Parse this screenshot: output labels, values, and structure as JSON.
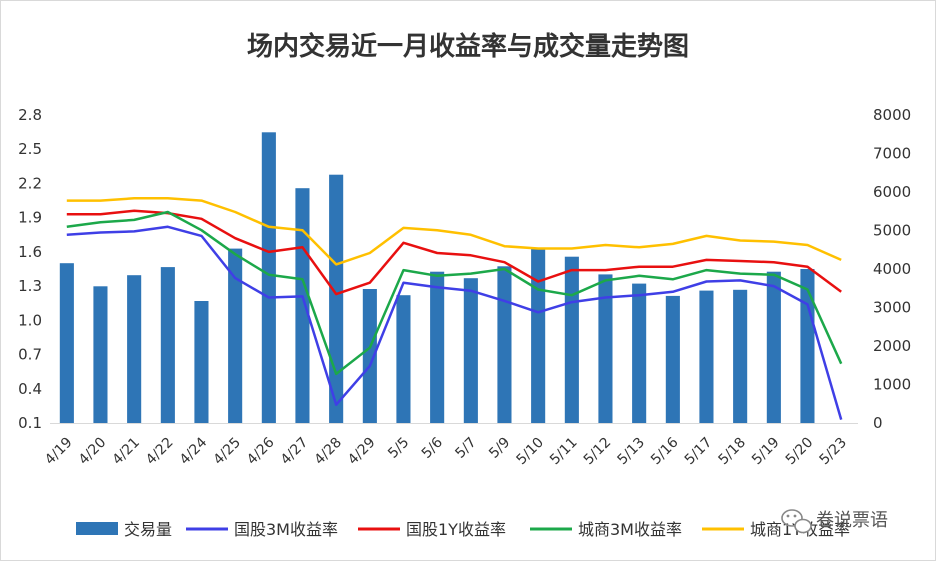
{
  "watermark": {
    "text": "卷说票语",
    "icon": "wechat-bubble-icon"
  },
  "chart_data": {
    "type": "bar",
    "title": "场内交易近一月收益率与成交量走势图",
    "categories": [
      "4/19",
      "4/20",
      "4/21",
      "4/22",
      "4/24",
      "4/25",
      "4/26",
      "4/27",
      "4/28",
      "4/29",
      "5/5",
      "5/6",
      "5/7",
      "5/9",
      "5/10",
      "5/11",
      "5/12",
      "5/13",
      "5/16",
      "5/17",
      "5/18",
      "5/19",
      "5/20",
      "5/23"
    ],
    "y_left": {
      "min": 0.1,
      "max": 2.8,
      "ticks": [
        "0.1",
        "0.4",
        "0.7",
        "1.0",
        "1.3",
        "1.6",
        "1.9",
        "2.2",
        "2.5",
        "2.8"
      ]
    },
    "y_right": {
      "min": 0,
      "max": 8000,
      "ticks": [
        "0",
        "1000",
        "2000",
        "3000",
        "4000",
        "5000",
        "6000",
        "7000",
        "8000"
      ]
    },
    "bar_series": {
      "name": "交易量",
      "color": "#2e75b6",
      "axis": "right",
      "values": [
        4150,
        3550,
        3840,
        4050,
        3170,
        4530,
        7550,
        6100,
        6450,
        3480,
        3320,
        3930,
        3760,
        4070,
        4530,
        4320,
        3860,
        3620,
        3300,
        3440,
        3460,
        3930,
        4000,
        null
      ]
    },
    "line_series": [
      {
        "name": "国股3M收益率",
        "color": "#3f3fe6",
        "axis": "left",
        "values": [
          1.75,
          1.77,
          1.78,
          1.82,
          1.74,
          1.37,
          1.2,
          1.21,
          0.26,
          0.6,
          1.33,
          1.29,
          1.26,
          1.17,
          1.07,
          1.16,
          1.2,
          1.22,
          1.25,
          1.34,
          1.35,
          1.3,
          1.14,
          0.13
        ]
      },
      {
        "name": "国股1Y收益率",
        "color": "#e81010",
        "axis": "left",
        "values": [
          1.93,
          1.93,
          1.96,
          1.94,
          1.89,
          1.72,
          1.6,
          1.64,
          1.23,
          1.33,
          1.68,
          1.59,
          1.57,
          1.51,
          1.34,
          1.44,
          1.44,
          1.47,
          1.47,
          1.53,
          1.52,
          1.51,
          1.47,
          1.25
        ]
      },
      {
        "name": "城商3M收益率",
        "color": "#1ca84a",
        "axis": "left",
        "values": [
          1.82,
          1.86,
          1.88,
          1.95,
          1.79,
          1.58,
          1.4,
          1.36,
          0.53,
          0.76,
          1.44,
          1.39,
          1.41,
          1.45,
          1.27,
          1.22,
          1.35,
          1.39,
          1.36,
          1.44,
          1.41,
          1.4,
          1.27,
          0.62
        ]
      },
      {
        "name": "城商1Y收益率",
        "color": "#ffc000",
        "axis": "left",
        "values": [
          2.05,
          2.05,
          2.07,
          2.07,
          2.05,
          1.95,
          1.82,
          1.79,
          1.49,
          1.59,
          1.81,
          1.79,
          1.75,
          1.65,
          1.63,
          1.63,
          1.66,
          1.64,
          1.67,
          1.74,
          1.7,
          1.69,
          1.66,
          1.53
        ]
      }
    ],
    "grid": false,
    "legend_position": "bottom"
  }
}
